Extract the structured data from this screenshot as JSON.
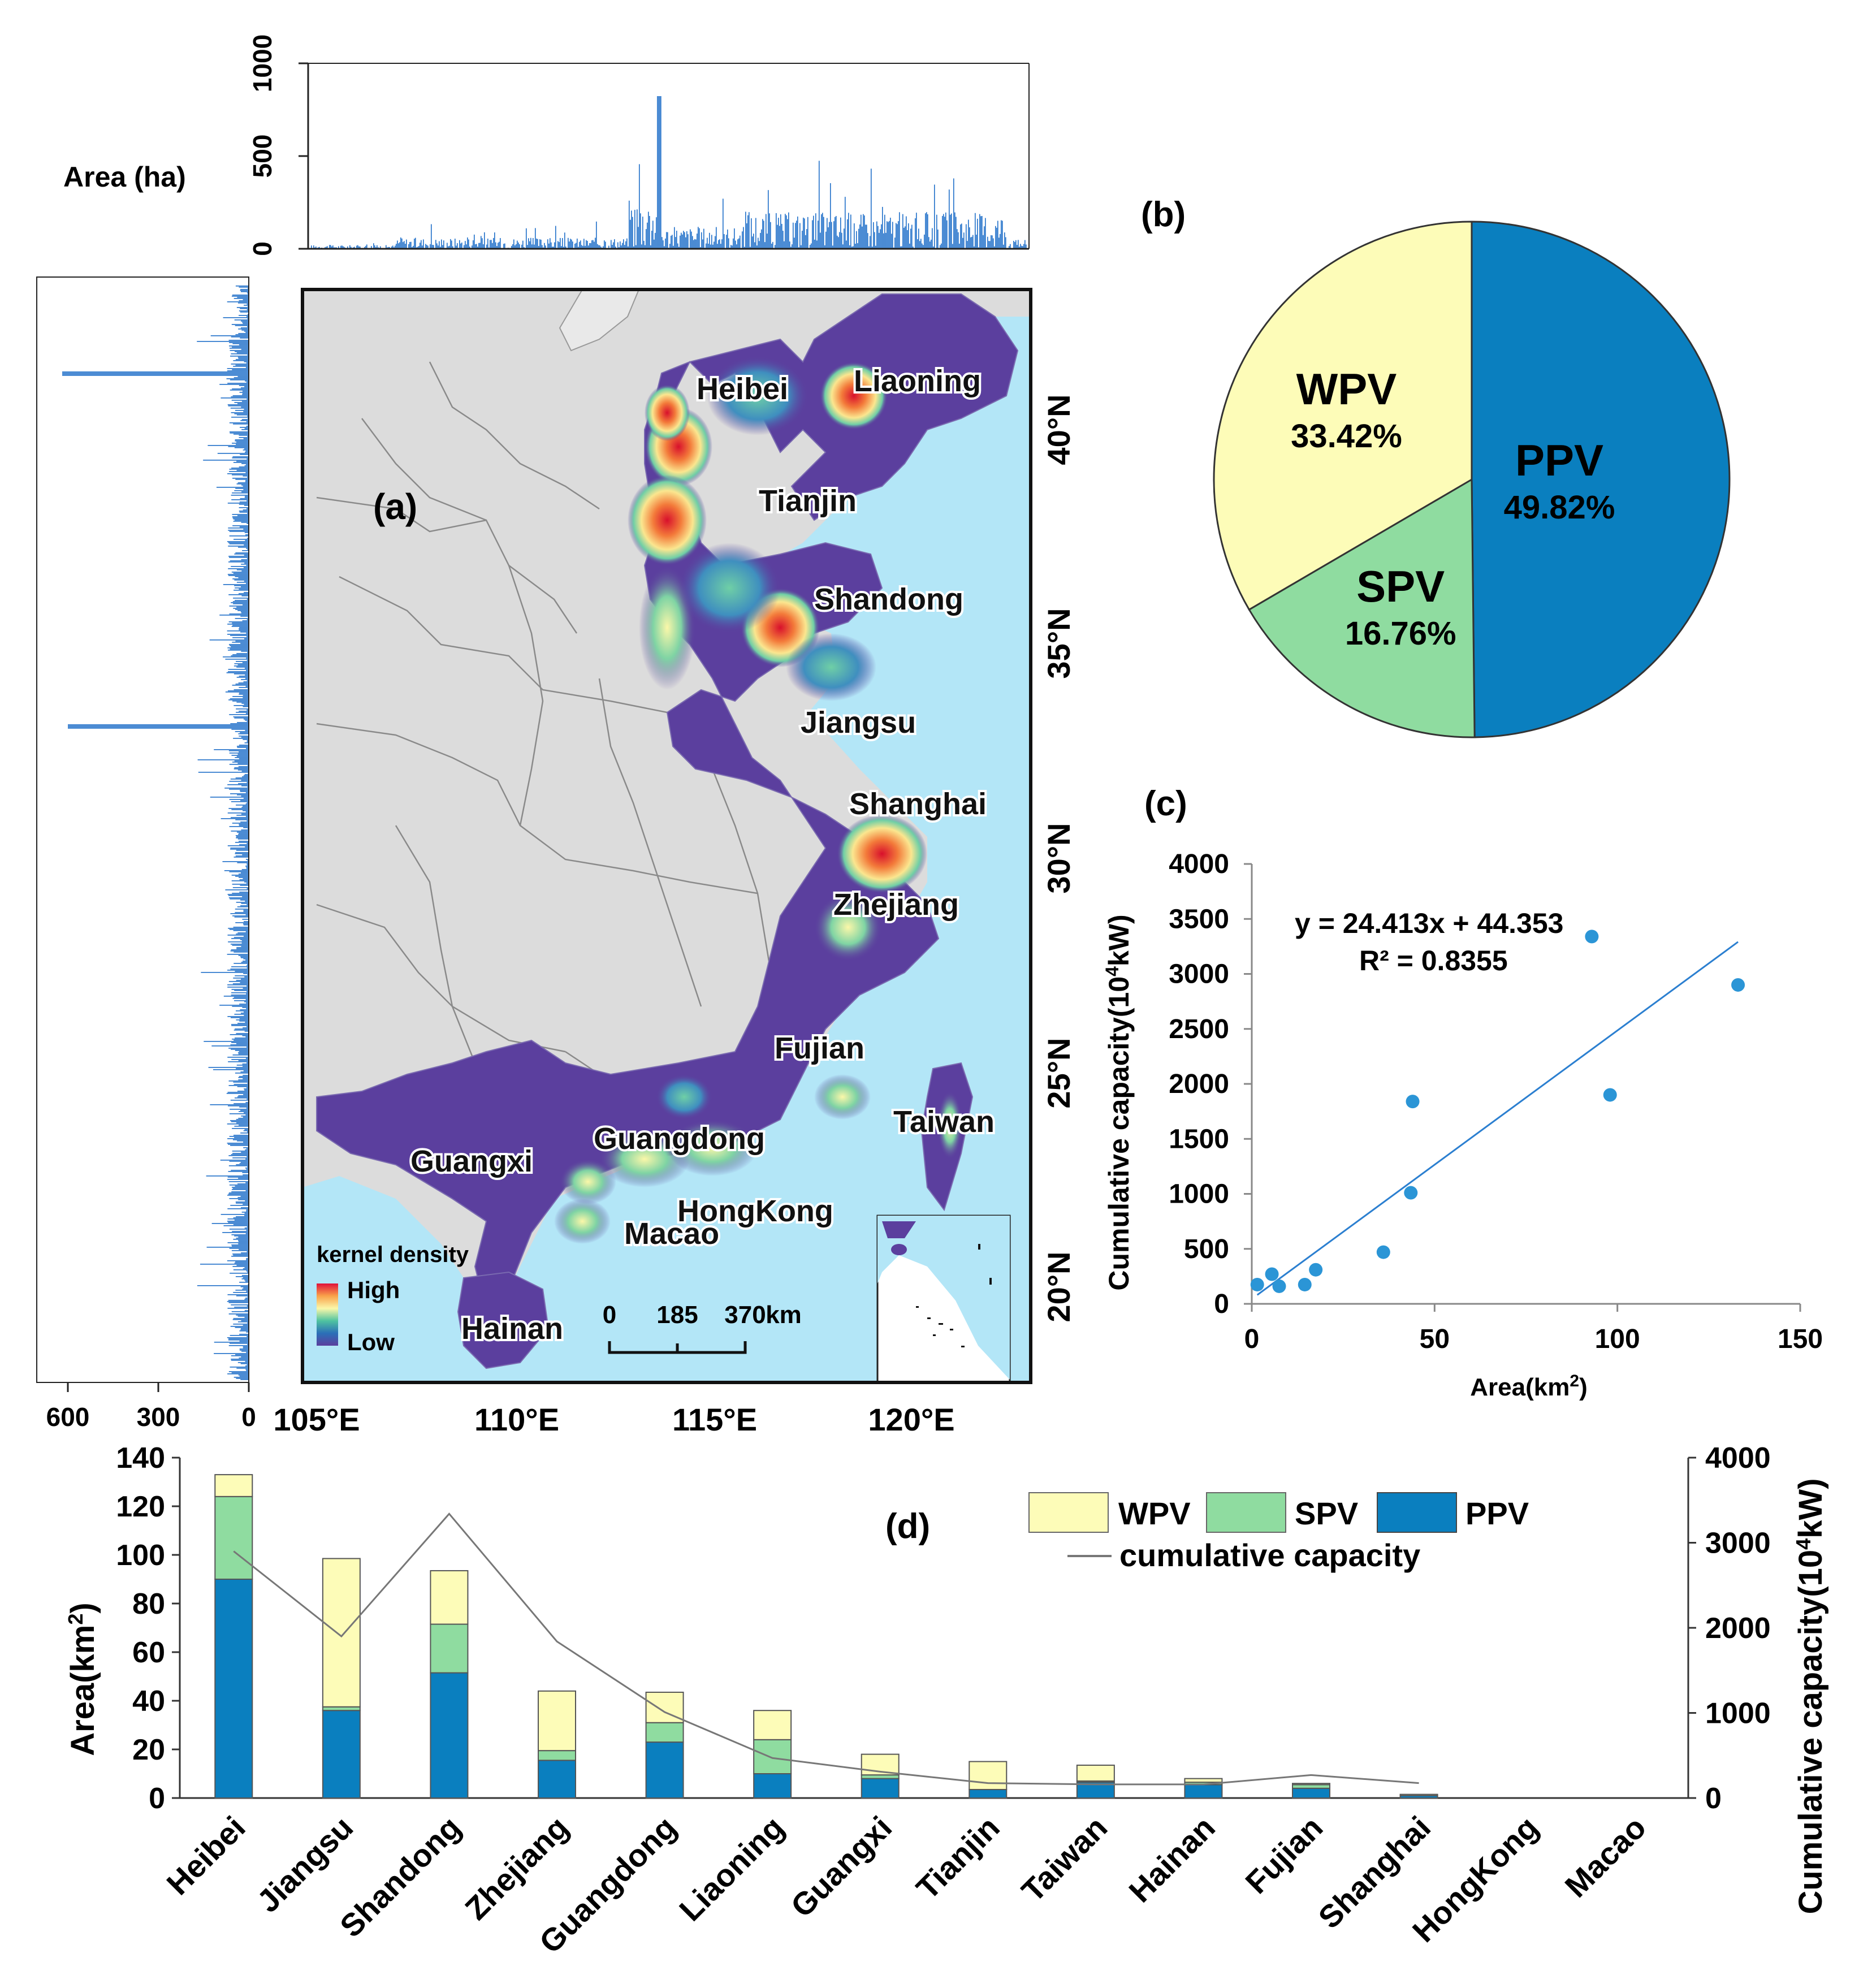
{
  "colors": {
    "ppv": "#0a7fbf",
    "spv": "#8fdca0",
    "wpv": "#fdfcb8",
    "hist": "#1f6fc9",
    "scatter": "#2b95d6",
    "sea": "#b3e6f7",
    "land": "#dcdcdc",
    "province": "#6d4ea6"
  },
  "map_panel": {
    "label": "(a)",
    "top_hist": {
      "ylabel": "Area (ha)",
      "yticks": [
        "0",
        "500",
        "1000"
      ]
    },
    "left_hist": {
      "xticks": [
        "600",
        "300",
        "0"
      ]
    },
    "lon_ticks": [
      "105°E",
      "110°E",
      "115°E",
      "120°E"
    ],
    "lat_ticks": [
      "40°N",
      "35°N",
      "30°N",
      "25°N",
      "20°N"
    ],
    "province_labels": [
      "Heibei",
      "Liaoning",
      "Tianjin",
      "Shandong",
      "Jiangsu",
      "Shanghai",
      "Zhejiang",
      "Fujian",
      "Taiwan",
      "Guangdong",
      "Guangxi",
      "HongKong",
      "Macao",
      "Hainan"
    ],
    "legend": {
      "title": "kernel density",
      "high": "High",
      "low": "Low"
    },
    "scale_bar": {
      "ticks": [
        "0",
        "185",
        "370"
      ],
      "unit": "km"
    }
  },
  "chart_data": [
    {
      "id": "b",
      "type": "pie",
      "label": "(b)",
      "slices": [
        {
          "name": "PPV",
          "value": 49.82,
          "text": "49.82%"
        },
        {
          "name": "SPV",
          "value": 16.76,
          "text": "16.76%"
        },
        {
          "name": "WPV",
          "value": 33.42,
          "text": "33.42%"
        }
      ]
    },
    {
      "id": "c",
      "type": "scatter",
      "label": "(c)",
      "xlabel": "Area(km",
      "xlabel_sup": "2",
      "xlabel_end": ")",
      "ylabel": "Cumulative capacity(10",
      "ylabel_sup": "4",
      "ylabel_end": "kW)",
      "xlim": [
        0,
        150
      ],
      "ylim": [
        0,
        4000
      ],
      "xticks": [
        "0",
        "50",
        "100",
        "150"
      ],
      "yticks": [
        "0",
        "500",
        "1000",
        "1500",
        "2000",
        "2500",
        "3000",
        "3500",
        "4000"
      ],
      "equation": "y = 24.413x + 44.353",
      "r2": "R² = 0.8355",
      "trend": {
        "slope": 24.413,
        "intercept": 44.353,
        "x_range": [
          1.5,
          133
        ]
      },
      "points": [
        {
          "x": 133,
          "y": 2900
        },
        {
          "x": 98,
          "y": 1900
        },
        {
          "x": 93,
          "y": 3340
        },
        {
          "x": 44,
          "y": 1840
        },
        {
          "x": 43.5,
          "y": 1010
        },
        {
          "x": 36,
          "y": 470
        },
        {
          "x": 17.5,
          "y": 310
        },
        {
          "x": 14.5,
          "y": 175
        },
        {
          "x": 7.5,
          "y": 160
        },
        {
          "x": 5.5,
          "y": 270
        },
        {
          "x": 1.5,
          "y": 175
        }
      ]
    },
    {
      "id": "d",
      "type": "bar",
      "label": "(d)",
      "ylabel": "Area(km",
      "ylabel_sup": "2",
      "ylabel_end": ")",
      "y2label": "Cumulative capacity(10",
      "y2label_sup": "4",
      "y2label_end": "kW)",
      "ylim": [
        0,
        140
      ],
      "y2lim": [
        0,
        4000
      ],
      "yticks": [
        "0",
        "20",
        "40",
        "60",
        "80",
        "100",
        "120",
        "140"
      ],
      "y2ticks": [
        "0",
        "1000",
        "2000",
        "3000",
        "4000"
      ],
      "categories": [
        "Heibei",
        "Jiangsu",
        "Shandong",
        "Zhejiang",
        "Guangdong",
        "Liaoning",
        "Guangxi",
        "Tianjin",
        "Taiwan",
        "Hainan",
        "Fujian",
        "Shanghai",
        "HongKong",
        "Macao"
      ],
      "series": [
        {
          "name": "PPV",
          "values": [
            90,
            36,
            51.5,
            15.5,
            23,
            10,
            8,
            3.5,
            6.5,
            5.5,
            4,
            1,
            0,
            0
          ]
        },
        {
          "name": "SPV",
          "values": [
            34,
            1.5,
            20,
            4,
            8,
            14,
            1.5,
            0,
            0.5,
            1,
            1.5,
            0,
            0,
            0
          ]
        },
        {
          "name": "WPV",
          "values": [
            9,
            61,
            22,
            24.5,
            12.5,
            12,
            8.5,
            11.5,
            6.5,
            1.5,
            0.5,
            0.5,
            0,
            0
          ]
        }
      ],
      "line": {
        "name": "cumulative capacity",
        "values": [
          2900,
          1900,
          3340,
          1840,
          1010,
          470,
          310,
          175,
          160,
          160,
          270,
          175,
          null,
          null
        ]
      }
    }
  ]
}
